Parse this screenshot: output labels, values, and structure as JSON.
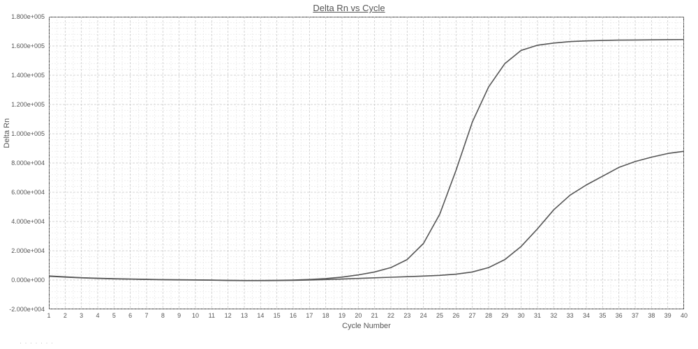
{
  "chart": {
    "type": "line",
    "title": "Delta Rn vs Cycle",
    "title_fontsize": 13,
    "title_underline": true,
    "xlabel": "Cycle Number",
    "ylabel": "Delta Rn",
    "label_fontsize": 11,
    "tick_fontsize": 9,
    "background_color": "#ffffff",
    "border_color": "#444444",
    "grid_color_major": "#c9c9c9",
    "grid_color_minor": "#e3e3e3",
    "grid_dash_major": "3,2",
    "grid_dash_minor": "2,2",
    "line_width": 1.6,
    "xlim": [
      1,
      40
    ],
    "ylim": [
      -20000,
      180000
    ],
    "ytick_step": 20000,
    "xtick_step": 1,
    "y_minor_per_major": 4,
    "x_minor_per_major": 1,
    "y_tick_labels": [
      "-2.000e+004",
      "0.000e+000",
      "2.000e+004",
      "4.000e+004",
      "6.000e+004",
      "8.000e+004",
      "1.000e+005",
      "1.200e+005",
      "1.400e+005",
      "1.600e+005",
      "1.800e+005"
    ],
    "series": [
      {
        "name": "curve-upper",
        "color": "#555555",
        "data": [
          [
            1,
            2800
          ],
          [
            2,
            2200
          ],
          [
            3,
            1600
          ],
          [
            4,
            1200
          ],
          [
            5,
            900
          ],
          [
            6,
            700
          ],
          [
            7,
            500
          ],
          [
            8,
            300
          ],
          [
            9,
            200
          ],
          [
            10,
            100
          ],
          [
            11,
            0
          ],
          [
            12,
            -200
          ],
          [
            13,
            -300
          ],
          [
            14,
            -300
          ],
          [
            15,
            -200
          ],
          [
            16,
            0
          ],
          [
            17,
            400
          ],
          [
            18,
            1000
          ],
          [
            19,
            2000
          ],
          [
            20,
            3500
          ],
          [
            21,
            5500
          ],
          [
            22,
            8500
          ],
          [
            23,
            14000
          ],
          [
            24,
            25000
          ],
          [
            25,
            45000
          ],
          [
            26,
            75000
          ],
          [
            27,
            108000
          ],
          [
            28,
            132000
          ],
          [
            29,
            148000
          ],
          [
            30,
            157000
          ],
          [
            31,
            160500
          ],
          [
            32,
            162000
          ],
          [
            33,
            163000
          ],
          [
            34,
            163500
          ],
          [
            35,
            163800
          ],
          [
            36,
            164000
          ],
          [
            37,
            164100
          ],
          [
            38,
            164200
          ],
          [
            39,
            164300
          ],
          [
            40,
            164400
          ]
        ]
      },
      {
        "name": "curve-lower",
        "color": "#555555",
        "data": [
          [
            1,
            2600
          ],
          [
            2,
            2000
          ],
          [
            3,
            1500
          ],
          [
            4,
            1100
          ],
          [
            5,
            800
          ],
          [
            6,
            600
          ],
          [
            7,
            400
          ],
          [
            8,
            200
          ],
          [
            9,
            100
          ],
          [
            10,
            0
          ],
          [
            11,
            -100
          ],
          [
            12,
            -300
          ],
          [
            13,
            -400
          ],
          [
            14,
            -400
          ],
          [
            15,
            -350
          ],
          [
            16,
            -200
          ],
          [
            17,
            0
          ],
          [
            18,
            300
          ],
          [
            19,
            700
          ],
          [
            20,
            1100
          ],
          [
            21,
            1500
          ],
          [
            22,
            1900
          ],
          [
            23,
            2300
          ],
          [
            24,
            2700
          ],
          [
            25,
            3200
          ],
          [
            26,
            4000
          ],
          [
            27,
            5500
          ],
          [
            28,
            8500
          ],
          [
            29,
            14000
          ],
          [
            30,
            23000
          ],
          [
            31,
            35000
          ],
          [
            32,
            48000
          ],
          [
            33,
            58000
          ],
          [
            34,
            65000
          ],
          [
            35,
            71000
          ],
          [
            36,
            77000
          ],
          [
            37,
            81000
          ],
          [
            38,
            84000
          ],
          [
            39,
            86500
          ],
          [
            40,
            88000
          ]
        ]
      }
    ]
  },
  "footnote": "· · · · · · ·"
}
